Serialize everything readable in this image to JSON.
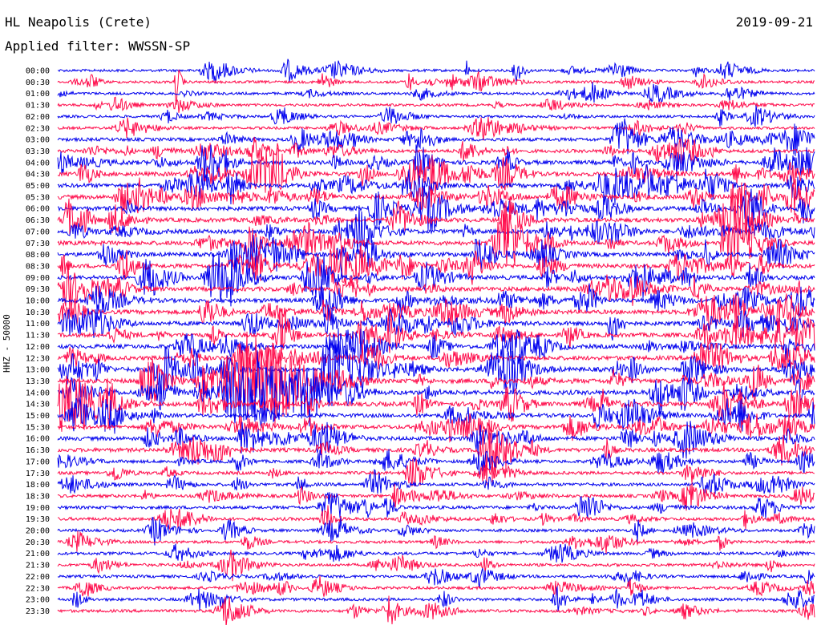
{
  "header": {
    "station": "HL Neapolis (Crete)",
    "filter": "Applied filter: WWSSN-SP",
    "date": "2019-09-21",
    "channel": "HHZ - 50000"
  },
  "colors": {
    "odd_trace": "#0000ee",
    "even_trace": "#ff0a4a",
    "text": "#000000"
  },
  "chart_data": {
    "type": "helicorder",
    "date": "2019-09-21",
    "row_interval_minutes": 30,
    "time_labels": [
      "00:00",
      "00:30",
      "01:00",
      "01:30",
      "02:00",
      "02:30",
      "03:00",
      "03:30",
      "04:00",
      "04:30",
      "05:00",
      "05:30",
      "06:00",
      "06:30",
      "07:00",
      "07:30",
      "08:00",
      "08:30",
      "09:00",
      "09:30",
      "10:00",
      "10:30",
      "11:00",
      "11:30",
      "12:00",
      "12:30",
      "13:00",
      "13:30",
      "14:00",
      "14:30",
      "15:00",
      "15:30",
      "16:00",
      "16:30",
      "17:00",
      "17:30",
      "18:00",
      "18:30",
      "19:00",
      "19:30",
      "20:00",
      "20:30",
      "21:00",
      "21:30",
      "22:00",
      "22:30",
      "23:00",
      "23:30"
    ],
    "trace_colors": [
      "blue",
      "red"
    ],
    "ylabel": "HHZ - 50000",
    "activity": "high amplitude noise between 03:30 and 17:00, strongest 13:00-15:00; quieter at night"
  }
}
